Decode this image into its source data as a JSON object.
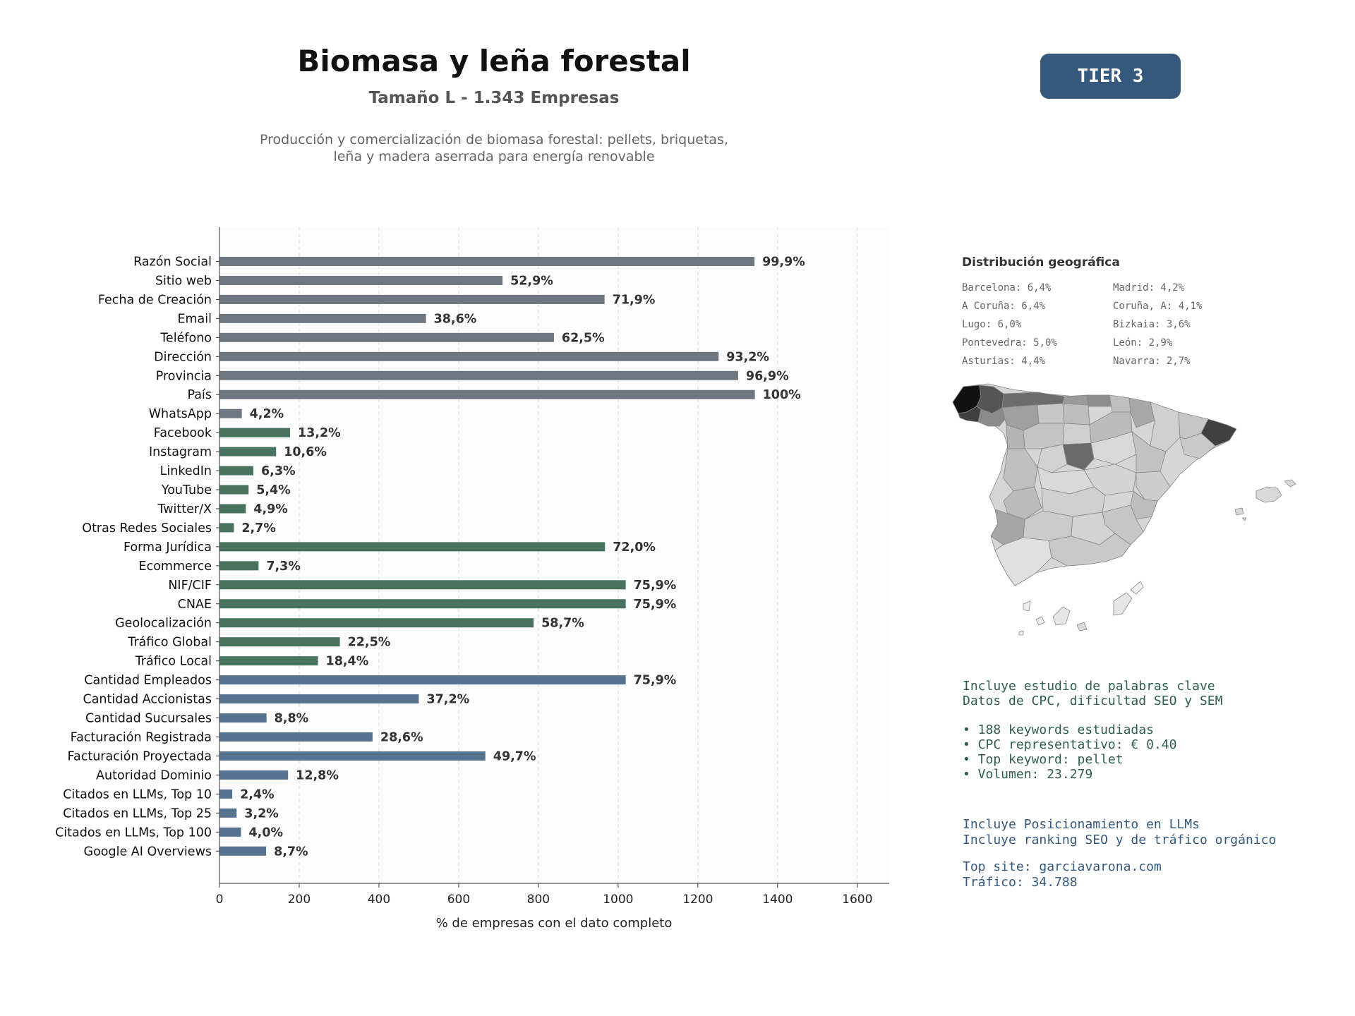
{
  "header": {
    "title": "Biomasa y leña forestal",
    "subtitle": "Tamaño L - 1.343 Empresas",
    "description_line1": "Producción y comercialización de biomasa forestal: pellets, briquetas,",
    "description_line2": "leña y madera aserrada para energía renovable",
    "tier": "TIER 3"
  },
  "colors": {
    "gray_bar": "#6e7780",
    "green_bar": "#47735f",
    "blue_bar": "#56738f",
    "tier_bg": "#34597d",
    "keyword_text": "#2f5e4c",
    "seo_text": "#34597d"
  },
  "chart_data": {
    "type": "bar",
    "orientation": "horizontal",
    "xlabel": "% de empresas con el dato completo",
    "xlim": [
      0,
      1680
    ],
    "xticks": [
      0,
      200,
      400,
      600,
      800,
      1000,
      1200,
      1400,
      1600
    ],
    "grid": "vertical dashed",
    "categories": [
      "Razón Social",
      "Sitio web",
      "Fecha de Creación",
      "Email",
      "Teléfono",
      "Dirección",
      "Provincia",
      "País",
      "WhatsApp",
      "Facebook",
      "Instagram",
      "LinkedIn",
      "YouTube",
      "Twitter/X",
      "Otras Redes Sociales",
      "Forma Jurídica",
      "Ecommerce",
      "NIF/CIF",
      "CNAE",
      "Geolocalización",
      "Tráfico Global",
      "Tráfico Local",
      "Cantidad Empleados",
      "Cantidad Accionistas",
      "Cantidad Sucursales",
      "Facturación Registrada",
      "Facturación Proyectada",
      "Autoridad Dominio",
      "Citados en LLMs, Top 10",
      "Citados en LLMs, Top 25",
      "Citados en LLMs, Top 100",
      "Google AI Overviews"
    ],
    "values": [
      1342,
      710,
      966,
      518,
      839,
      1252,
      1301,
      1343,
      56,
      177,
      142,
      85,
      73,
      66,
      36,
      967,
      98,
      1019,
      1019,
      788,
      302,
      247,
      1019,
      500,
      118,
      384,
      667,
      172,
      32,
      43,
      54,
      117
    ],
    "labels": [
      "99,9%",
      "52,9%",
      "71,9%",
      "38,6%",
      "62,5%",
      "93,2%",
      "96,9%",
      "100%",
      "4,2%",
      "13,2%",
      "10,6%",
      "6,3%",
      "5,4%",
      "4,9%",
      "2,7%",
      "72,0%",
      "7,3%",
      "75,9%",
      "75,9%",
      "58,7%",
      "22,5%",
      "18,4%",
      "75,9%",
      "37,2%",
      "8,8%",
      "28,6%",
      "49,7%",
      "12,8%",
      "2,4%",
      "3,2%",
      "4,0%",
      "8,7%"
    ],
    "color_groups": [
      "gray",
      "gray",
      "gray",
      "gray",
      "gray",
      "gray",
      "gray",
      "gray",
      "gray",
      "green",
      "green",
      "green",
      "green",
      "green",
      "green",
      "green",
      "green",
      "green",
      "green",
      "green",
      "green",
      "green",
      "blue",
      "blue",
      "blue",
      "blue",
      "blue",
      "blue",
      "blue",
      "blue",
      "blue",
      "blue"
    ]
  },
  "geo": {
    "title": "Distribución geográfica",
    "items": [
      "Barcelona: 6,4%",
      "Madrid: 4,2%",
      "A Coruña: 6,4%",
      "Coruña, A: 4,1%",
      "Lugo: 6,0%",
      "Bizkaia: 3,6%",
      "Pontevedra: 5,0%",
      "León: 2,9%",
      "Asturias: 4,4%",
      "Navarra: 2,7%"
    ]
  },
  "keywords": {
    "line1": "Incluye estudio de palabras clave",
    "line2": "Datos de CPC, dificultad SEO y SEM",
    "bullet1": "• 188 keywords estudiadas",
    "bullet2": "• CPC representativo: € 0.40",
    "bullet3": "• Top keyword: pellet",
    "bullet4": "• Volumen: 23.279"
  },
  "seo": {
    "line1": "Incluye Posicionamiento en LLMs",
    "line2": "Incluye ranking SEO y de tráfico orgánico",
    "top_site": "Top site: garciavarona.com",
    "traffic": "Tráfico: 34.788"
  }
}
